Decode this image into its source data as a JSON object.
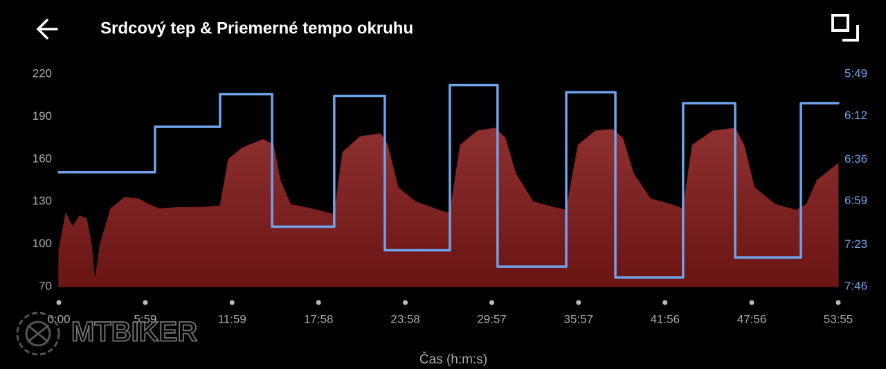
{
  "header": {
    "title": "Srdcový tep & Priemerné tempo okruhu"
  },
  "watermark": "MTBIKER",
  "chart_data": {
    "type": "area-step",
    "xlabel": "Čas (h:m:s)",
    "xlim": [
      0,
      3235
    ],
    "xticks": [
      {
        "value": 0,
        "label": "0:00"
      },
      {
        "value": 359,
        "label": "5:59"
      },
      {
        "value": 719,
        "label": "11:59"
      },
      {
        "value": 1078,
        "label": "17:58"
      },
      {
        "value": 1438,
        "label": "23:58"
      },
      {
        "value": 1797,
        "label": "29:57"
      },
      {
        "value": 2157,
        "label": "35:57"
      },
      {
        "value": 2516,
        "label": "41:56"
      },
      {
        "value": 2876,
        "label": "47:56"
      },
      {
        "value": 3235,
        "label": "53:55"
      }
    ],
    "ylim": [
      70,
      220
    ],
    "yticks": [
      70,
      100,
      130,
      160,
      190,
      220
    ],
    "y2lim": [
      466,
      349
    ],
    "y2ticks": [
      {
        "value": 349,
        "label": "5:49"
      },
      {
        "value": 372,
        "label": "6:12"
      },
      {
        "value": 396,
        "label": "6:36"
      },
      {
        "value": 419,
        "label": "6:59"
      },
      {
        "value": 443,
        "label": "7:23"
      },
      {
        "value": 466,
        "label": "7:46"
      }
    ],
    "series": [
      {
        "type": "area",
        "color": "#7a1f1f",
        "x": [
          0,
          29,
          57,
          86,
          115,
          135,
          149,
          172,
          215,
          273,
          330,
          374,
          417,
          503,
          589,
          669,
          704,
          761,
          848,
          891,
          919,
          962,
          1049,
          1143,
          1178,
          1250,
          1336,
          1365,
          1408,
          1480,
          1595,
          1623,
          1666,
          1738,
          1810,
          1853,
          1896,
          1968,
          2054,
          2106,
          2155,
          2227,
          2298,
          2341,
          2385,
          2456,
          2543,
          2591,
          2629,
          2715,
          2807,
          2844,
          2887,
          2974,
          3060,
          3103,
          3146,
          3235
        ],
        "values": [
          95,
          122,
          112,
          120,
          118,
          100,
          73,
          100,
          125,
          133,
          132,
          128,
          125,
          126,
          126,
          127,
          160,
          168,
          174,
          170,
          145,
          128,
          125,
          121,
          165,
          176,
          178,
          170,
          140,
          130,
          123,
          122,
          170,
          180,
          182,
          175,
          150,
          130,
          126,
          124,
          170,
          180,
          181,
          175,
          150,
          132,
          128,
          125,
          170,
          180,
          182,
          170,
          140,
          128,
          124,
          128,
          145,
          157
        ]
      },
      {
        "type": "step",
        "axis": "y2",
        "color": "#6fa3ea",
        "x": [
          0,
          399,
          669,
          885,
          1143,
          1353,
          1623,
          1821,
          2106,
          2310,
          2591,
          2807,
          3080
        ],
        "values": [
          403,
          378,
          360,
          433,
          361,
          446,
          355,
          455,
          359,
          461,
          365,
          450,
          365
        ]
      }
    ]
  }
}
